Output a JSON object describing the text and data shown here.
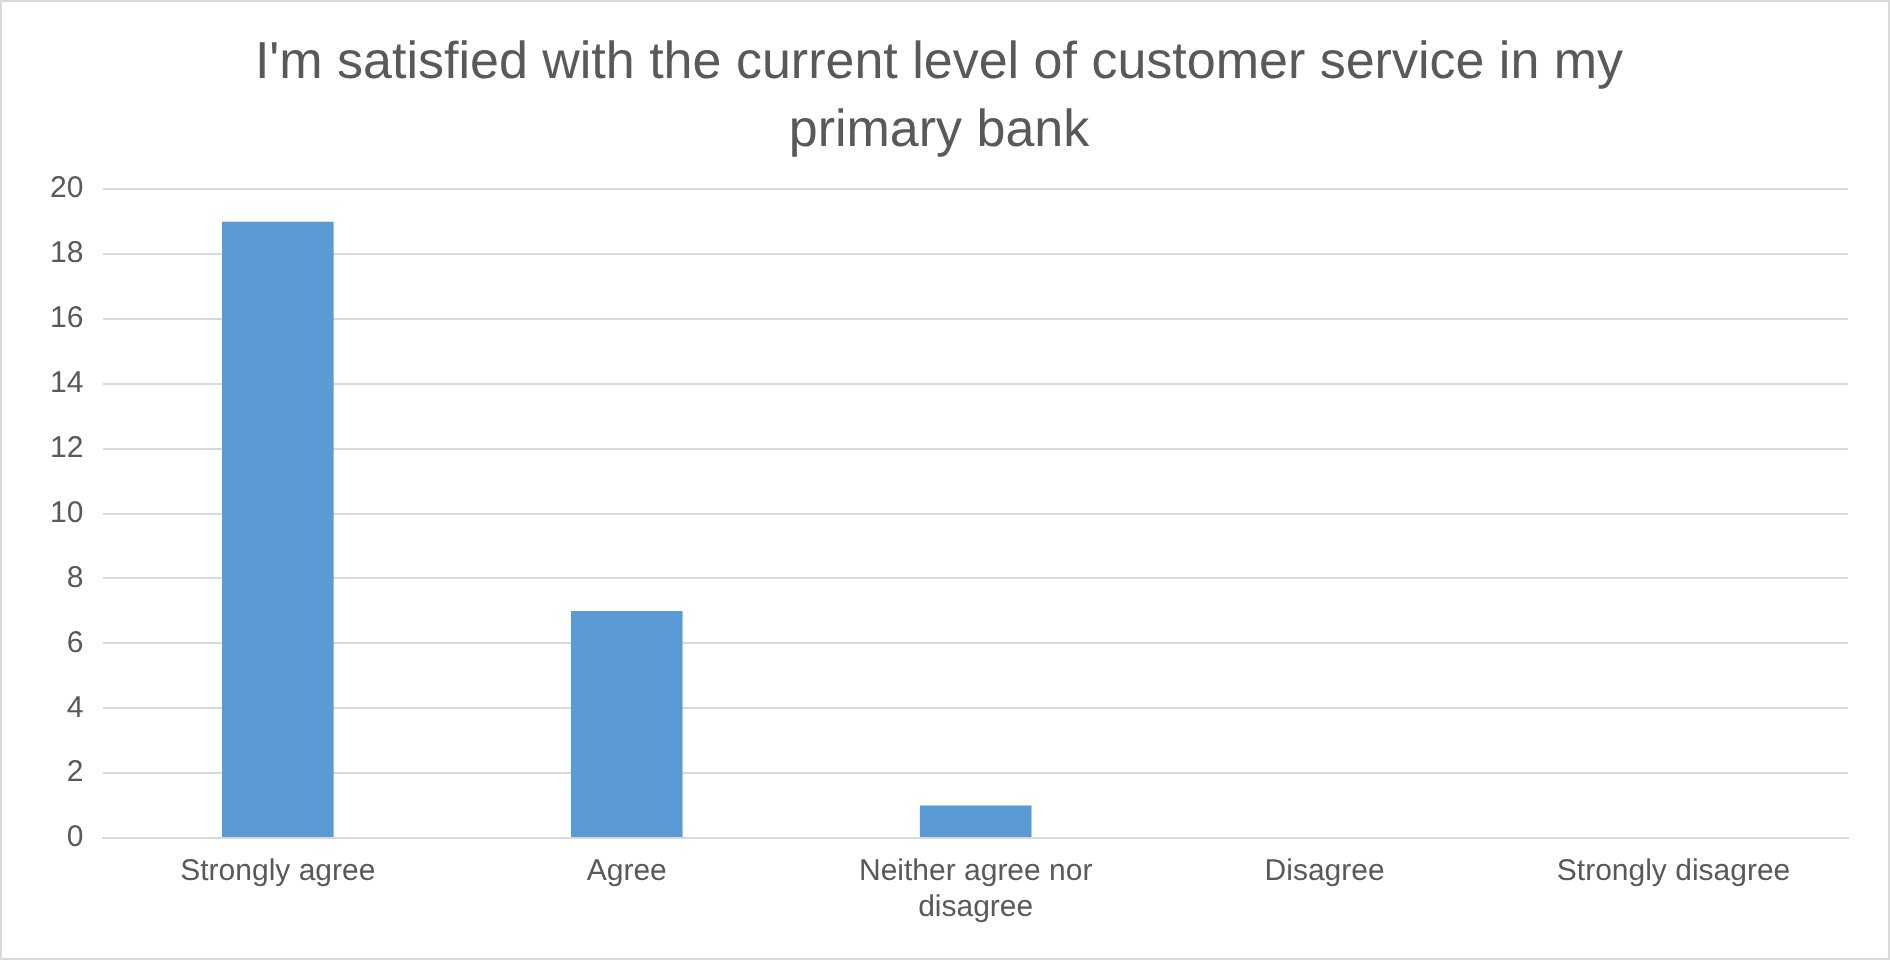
{
  "chart_data": {
    "type": "bar",
    "title": "I'm satisfied with the current level of customer service in my primary bank",
    "categories": [
      "Strongly agree",
      "Agree",
      "Neither agree nor disagree",
      "Disagree",
      "Strongly disagree"
    ],
    "values": [
      19,
      7,
      1,
      0,
      0
    ],
    "color": "#5b9bd5",
    "ylim": [
      0,
      20
    ],
    "yticks": [
      0,
      2,
      4,
      6,
      8,
      10,
      12,
      14,
      16,
      18,
      20
    ],
    "grid": "y",
    "legend": false
  }
}
